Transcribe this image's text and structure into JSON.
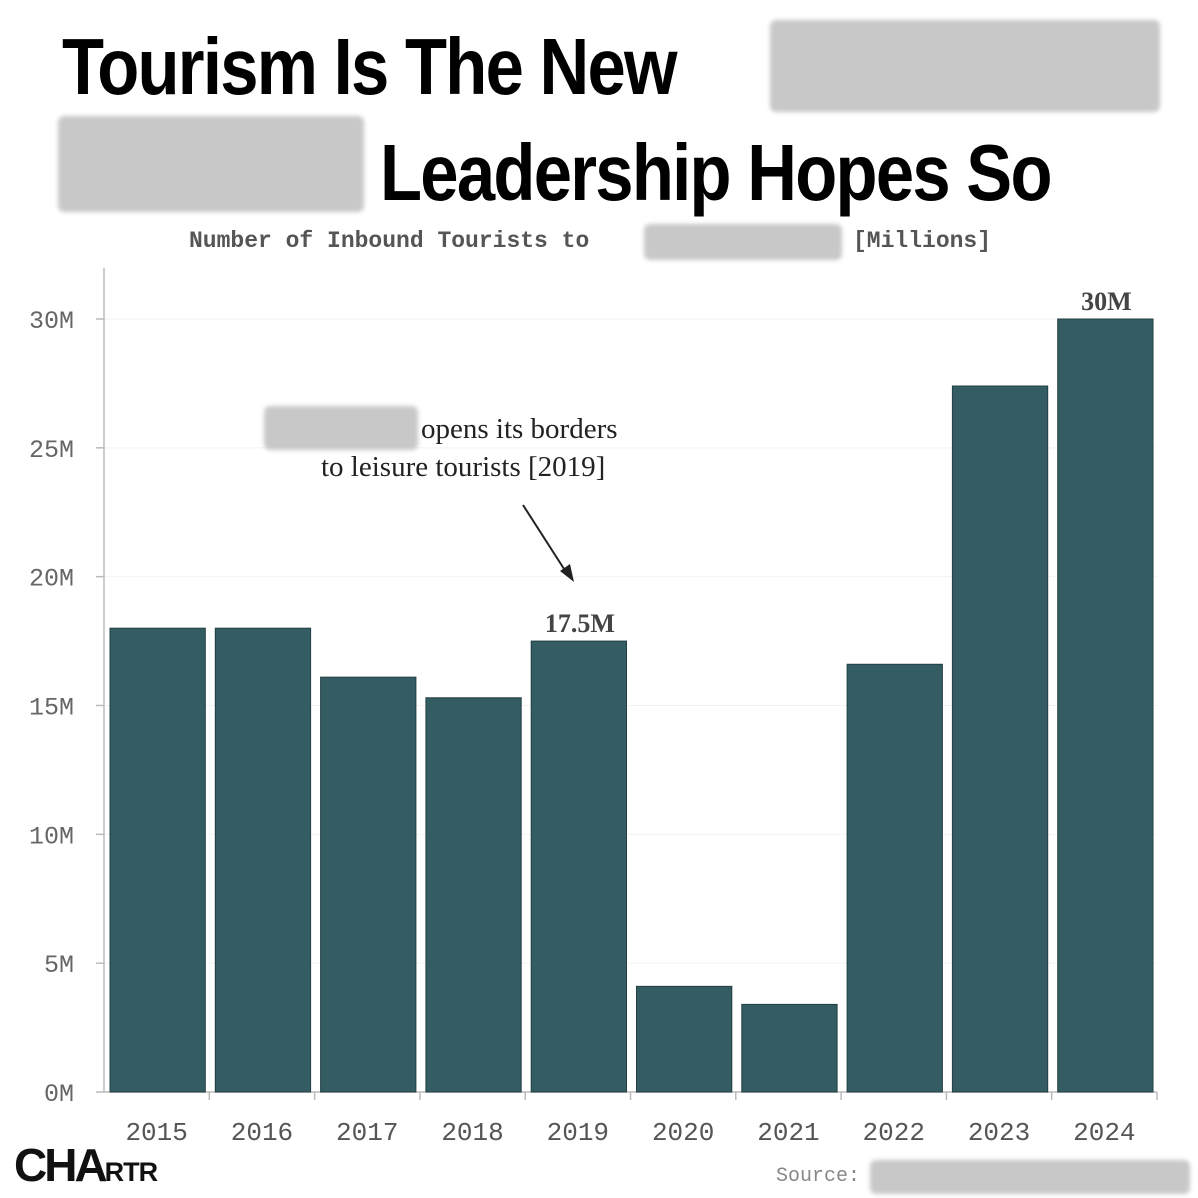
{
  "title": {
    "line1": "Tourism Is The New",
    "line2": "Leadership Hopes So"
  },
  "subtitle": {
    "prefix": "Number of Inbound Tourists to",
    "suffix": "[Millions]"
  },
  "annotation": {
    "line1": "opens its borders",
    "line2": "to leisure tourists [2019]"
  },
  "brand": {
    "big": "CHA",
    "small": "RTR"
  },
  "source_label": "Source:",
  "colors": {
    "bar": "#335c63",
    "axis": "#bbbbbb",
    "grid": "#f2f2f2",
    "redaction": "#c8c8c8"
  },
  "chart_data": {
    "type": "bar",
    "categories": [
      "2015",
      "2016",
      "2017",
      "2018",
      "2019",
      "2020",
      "2021",
      "2022",
      "2023",
      "2024"
    ],
    "values": [
      18.0,
      18.0,
      16.1,
      15.3,
      17.5,
      4.1,
      3.4,
      16.6,
      27.4,
      30.0
    ],
    "data_labels": {
      "2019": "17.5M",
      "2024": "30M"
    },
    "ylim": [
      0,
      30
    ],
    "yticks": [
      0,
      5,
      10,
      15,
      20,
      25,
      30
    ],
    "ytick_labels": [
      "0M",
      "5M",
      "10M",
      "15M",
      "20M",
      "25M",
      "30M"
    ],
    "xlabel": "",
    "ylabel": "",
    "grid": true,
    "legend": "none"
  }
}
